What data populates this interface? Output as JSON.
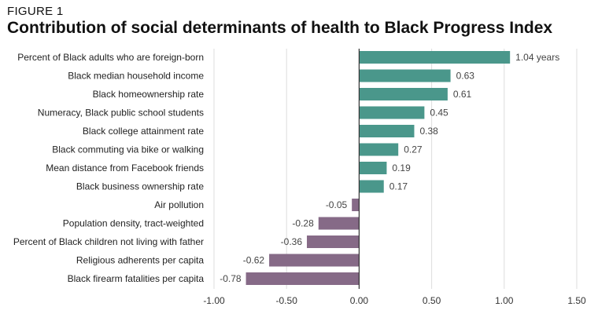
{
  "figure_label": "FIGURE 1",
  "title": "Contribution of social determinants of health to Black Progress Index",
  "colors": {
    "positive": "#4a978b",
    "negative": "#866a87",
    "grid": "#dddddd",
    "zero_line": "#333333",
    "text": "#333333"
  },
  "chart_data": {
    "type": "bar",
    "orientation": "horizontal",
    "title": "Contribution of social determinants of health to Black Progress Index",
    "xlim": [
      -1.0,
      1.5
    ],
    "xticks": [
      -1.0,
      -0.5,
      0.0,
      0.5,
      1.0,
      1.5
    ],
    "xtick_labels": [
      "-1.00",
      "-0.50",
      "0.00",
      "0.50",
      "1.00",
      "1.50"
    ],
    "grid": true,
    "categories": [
      "Percent of Black adults who are foreign-born",
      "Black median household income",
      "Black homeownership rate",
      "Numeracy, Black public school students",
      "Black college attainment rate",
      "Black commuting via bike or walking",
      "Mean distance from Facebook friends",
      "Black business ownership rate",
      "Air pollution",
      "Population density, tract-weighted",
      "Percent of Black children not living with father",
      "Religious adherents per capita",
      "Black firearm fatalities per capita"
    ],
    "values": [
      1.04,
      0.63,
      0.61,
      0.45,
      0.38,
      0.27,
      0.19,
      0.17,
      -0.05,
      -0.28,
      -0.36,
      -0.62,
      -0.78
    ],
    "data_labels": [
      "1.04 years",
      "0.63",
      "0.61",
      "0.45",
      "0.38",
      "0.27",
      "0.19",
      "0.17",
      "-0.05",
      "-0.28",
      "-0.36",
      "-0.62",
      "-0.78"
    ]
  }
}
